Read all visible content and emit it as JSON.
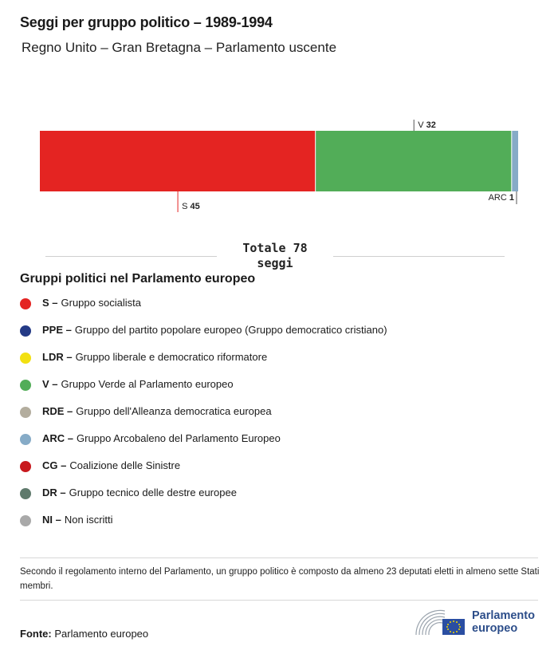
{
  "title": "Seggi per gruppo politico – 1989-1994",
  "subtitle": "Regno Unito – Gran Bretagna – Parlamento uscente",
  "chart_data": {
    "type": "bar",
    "orientation": "horizontal-stacked",
    "total": 78,
    "segments": [
      {
        "abbr": "S",
        "value": 45,
        "color": "#e42422",
        "label_position": "below"
      },
      {
        "abbr": "V",
        "value": 32,
        "color": "#52ad58",
        "label_position": "above"
      },
      {
        "abbr": "ARC",
        "value": 1,
        "color": "#86abc7",
        "label_position": "below"
      }
    ]
  },
  "total_label": {
    "line1": "Totale 78",
    "line2": "seggi"
  },
  "legend": {
    "title": "Gruppi politici nel Parlamento europeo",
    "items": [
      {
        "abbr": "S –",
        "name": "Gruppo socialista",
        "color": "#e42422"
      },
      {
        "abbr": "PPE –",
        "name": "Gruppo del partito popolare europeo (Gruppo democratico cristiano)",
        "color": "#243a86"
      },
      {
        "abbr": "LDR –",
        "name": "Gruppo liberale e democratico riformatore",
        "color": "#f2e011"
      },
      {
        "abbr": "V –",
        "name": "Gruppo Verde al Parlamento europeo",
        "color": "#52ad58"
      },
      {
        "abbr": "RDE –",
        "name": "Gruppo dell'Alleanza democratica europea",
        "color": "#b3ad9e"
      },
      {
        "abbr": "ARC –",
        "name": "Gruppo Arcobaleno del Parlamento Europeo",
        "color": "#86abc7"
      },
      {
        "abbr": "CG –",
        "name": "Coalizione delle Sinistre",
        "color": "#c8191e"
      },
      {
        "abbr": "DR –",
        "name": "Gruppo tecnico delle destre europee",
        "color": "#5f7a6c"
      },
      {
        "abbr": "NI –",
        "name": "Non iscritti",
        "color": "#a9a9a9"
      }
    ]
  },
  "note": "Secondo il regolamento interno del Parlamento, un gruppo politico è composto da almeno 23 deputati eletti in almeno sette Stati membri.",
  "source": {
    "label": "Fonte:",
    "value": "Parlamento europeo"
  },
  "logo": {
    "line1": "Parlamento",
    "line2": "europeo",
    "icon": "european-parliament-logo"
  }
}
